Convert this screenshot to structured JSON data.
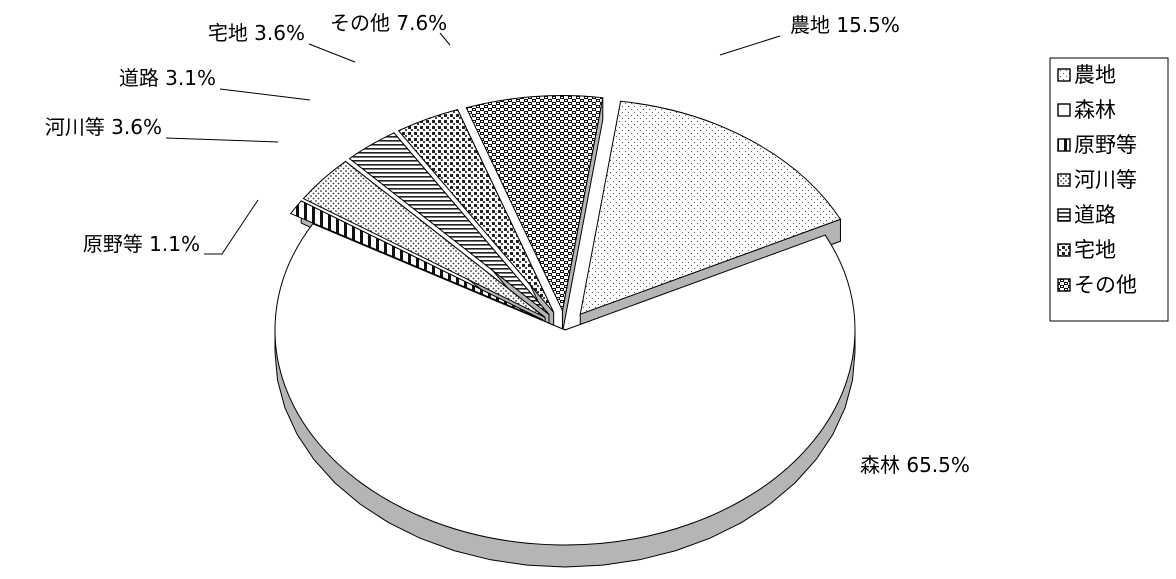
{
  "chart_data": {
    "type": "pie",
    "subtype": "3d-exploded",
    "title": "",
    "categories": [
      "農地",
      "森林",
      "原野等",
      "河川等",
      "道路",
      "宅地",
      "その他"
    ],
    "values": [
      15.5,
      65.5,
      1.1,
      3.6,
      3.1,
      3.6,
      7.6
    ],
    "unit": "%",
    "data_labels": [
      "農地 15.5%",
      "森林 65.5%",
      "原野等 1.1%",
      "河川等 3.6%",
      "道路 3.1%",
      "宅地 3.6%",
      "その他 7.6%"
    ],
    "legend": {
      "position": "right",
      "entries": [
        "農地",
        "森林",
        "原野等",
        "河川等",
        "道路",
        "宅地",
        "その他"
      ]
    },
    "colors": {
      "face": "#ffffff",
      "side": "#b5b5b5",
      "dark_side": "#5a5a5a",
      "outline": "#000000",
      "pattern": "#333333"
    },
    "exploded_slices": [
      "農地",
      "原野等",
      "河川等",
      "道路",
      "宅地",
      "その他"
    ]
  }
}
